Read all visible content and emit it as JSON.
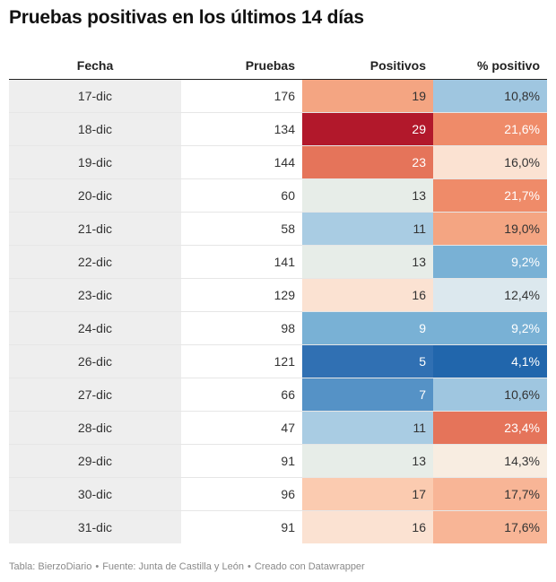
{
  "title": "Pruebas positivas en los últimos 14 días",
  "chart_data": {
    "type": "table",
    "columns": [
      "Fecha",
      "Pruebas",
      "Positivos",
      "% positivo"
    ],
    "rows": [
      {
        "fecha": "17-dic",
        "pruebas": "176",
        "positivos": "19",
        "pct": "10,8%",
        "pos_color": "#f4a582",
        "pct_color": "#9fc6e0"
      },
      {
        "fecha": "18-dic",
        "pruebas": "134",
        "positivos": "29",
        "pct": "21,6%",
        "pos_color": "#b2182b",
        "pct_color": "#ef8b69"
      },
      {
        "fecha": "19-dic",
        "pruebas": "144",
        "positivos": "23",
        "pct": "16,0%",
        "pos_color": "#e5745a",
        "pct_color": "#fbe2d2"
      },
      {
        "fecha": "20-dic",
        "pruebas": "60",
        "positivos": "13",
        "pct": "21,7%",
        "pos_color": "#e7ede8",
        "pct_color": "#ef8b69"
      },
      {
        "fecha": "21-dic",
        "pruebas": "58",
        "positivos": "11",
        "pct": "19,0%",
        "pos_color": "#a9cce3",
        "pct_color": "#f4a582"
      },
      {
        "fecha": "22-dic",
        "pruebas": "141",
        "positivos": "13",
        "pct": "9,2%",
        "pos_color": "#e7ede8",
        "pct_color": "#79b1d5"
      },
      {
        "fecha": "23-dic",
        "pruebas": "129",
        "positivos": "16",
        "pct": "12,4%",
        "pos_color": "#fbe2d2",
        "pct_color": "#dce8ee"
      },
      {
        "fecha": "24-dic",
        "pruebas": "98",
        "positivos": "9",
        "pct": "9,2%",
        "pos_color": "#79b1d5",
        "pct_color": "#79b1d5"
      },
      {
        "fecha": "26-dic",
        "pruebas": "121",
        "positivos": "5",
        "pct": "4,1%",
        "pos_color": "#3070b3",
        "pct_color": "#2166ac"
      },
      {
        "fecha": "27-dic",
        "pruebas": "66",
        "positivos": "7",
        "pct": "10,6%",
        "pos_color": "#5592c6",
        "pct_color": "#9fc6e0"
      },
      {
        "fecha": "28-dic",
        "pruebas": "47",
        "positivos": "11",
        "pct": "23,4%",
        "pos_color": "#a9cce3",
        "pct_color": "#e5745a"
      },
      {
        "fecha": "29-dic",
        "pruebas": "91",
        "positivos": "13",
        "pct": "14,3%",
        "pos_color": "#e7ede8",
        "pct_color": "#f8ede1"
      },
      {
        "fecha": "30-dic",
        "pruebas": "96",
        "positivos": "17",
        "pct": "17,7%",
        "pos_color": "#fbcbb0",
        "pct_color": "#f8b596"
      },
      {
        "fecha": "31-dic",
        "pruebas": "91",
        "positivos": "16",
        "pct": "17,6%",
        "pos_color": "#fbe2d2",
        "pct_color": "#f8b596"
      }
    ]
  },
  "footer": {
    "tabla": "Tabla: BierzoDiario",
    "fuente": "Fuente: Junta de Castilla y León",
    "creado": "Creado con Datawrapper",
    "separator": "•"
  }
}
